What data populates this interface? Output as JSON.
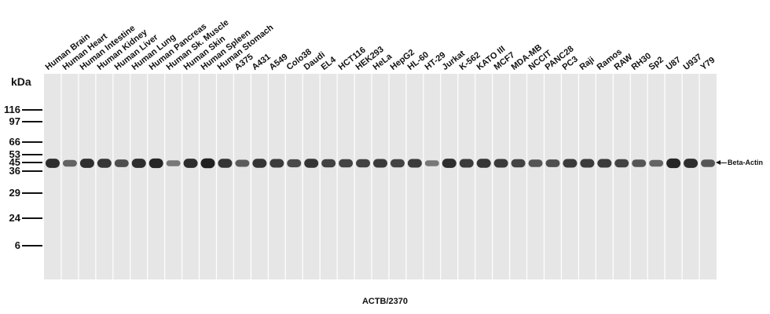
{
  "lanes": [
    {
      "label": "Human Brain",
      "intensity": 0.85
    },
    {
      "label": "Human Heart",
      "intensity": 0.45
    },
    {
      "label": "Human Intestine",
      "intensity": 0.85
    },
    {
      "label": "Human Kidney",
      "intensity": 0.8
    },
    {
      "label": "Human Liver",
      "intensity": 0.6
    },
    {
      "label": "Human Lung",
      "intensity": 0.85
    },
    {
      "label": "Human Pancreas",
      "intensity": 0.9
    },
    {
      "label": "Human Sk. Muscle",
      "intensity": 0.3
    },
    {
      "label": "Human Skin",
      "intensity": 0.85
    },
    {
      "label": "Human Spleen",
      "intensity": 0.95
    },
    {
      "label": "Human Stomach",
      "intensity": 0.8
    },
    {
      "label": "A375",
      "intensity": 0.5
    },
    {
      "label": "A431",
      "intensity": 0.8
    },
    {
      "label": "A549",
      "intensity": 0.75
    },
    {
      "label": "Colo38",
      "intensity": 0.65
    },
    {
      "label": "Daudi",
      "intensity": 0.8
    },
    {
      "label": "EL4",
      "intensity": 0.7
    },
    {
      "label": "HCT116",
      "intensity": 0.7
    },
    {
      "label": "HEK293",
      "intensity": 0.7
    },
    {
      "label": "HeLa",
      "intensity": 0.75
    },
    {
      "label": "HepG2",
      "intensity": 0.7
    },
    {
      "label": "HL-60",
      "intensity": 0.75
    },
    {
      "label": "HT-29",
      "intensity": 0.3
    },
    {
      "label": "Jurkat",
      "intensity": 0.85
    },
    {
      "label": "K-562",
      "intensity": 0.75
    },
    {
      "label": "KATO III",
      "intensity": 0.8
    },
    {
      "label": "MCF7",
      "intensity": 0.75
    },
    {
      "label": "MDA-MB",
      "intensity": 0.7
    },
    {
      "label": "NCCIT",
      "intensity": 0.55
    },
    {
      "label": "PANC28",
      "intensity": 0.6
    },
    {
      "label": "PC3",
      "intensity": 0.75
    },
    {
      "label": "Raji",
      "intensity": 0.75
    },
    {
      "label": "Ramos",
      "intensity": 0.75
    },
    {
      "label": "RAW",
      "intensity": 0.7
    },
    {
      "label": "RH30",
      "intensity": 0.55
    },
    {
      "label": "Sp2",
      "intensity": 0.45
    },
    {
      "label": "U87",
      "intensity": 0.9
    },
    {
      "label": "U937",
      "intensity": 0.85
    },
    {
      "label": "Y79",
      "intensity": 0.55
    }
  ],
  "markers_title": "kDa",
  "markers": [
    {
      "label": "116"
    },
    {
      "label": "97"
    },
    {
      "label": "66"
    },
    {
      "label": "53"
    },
    {
      "label": "45"
    },
    {
      "label": "36"
    },
    {
      "label": "29"
    },
    {
      "label": "24"
    },
    {
      "label": "6"
    }
  ],
  "band_label": "Beta-Actin",
  "footer_label": "ACTB/2370",
  "colors": {
    "membrane": "#e6e6e6",
    "lane_divider": "#ffffff",
    "band": "#1a1a1a",
    "ink": "#111111"
  }
}
